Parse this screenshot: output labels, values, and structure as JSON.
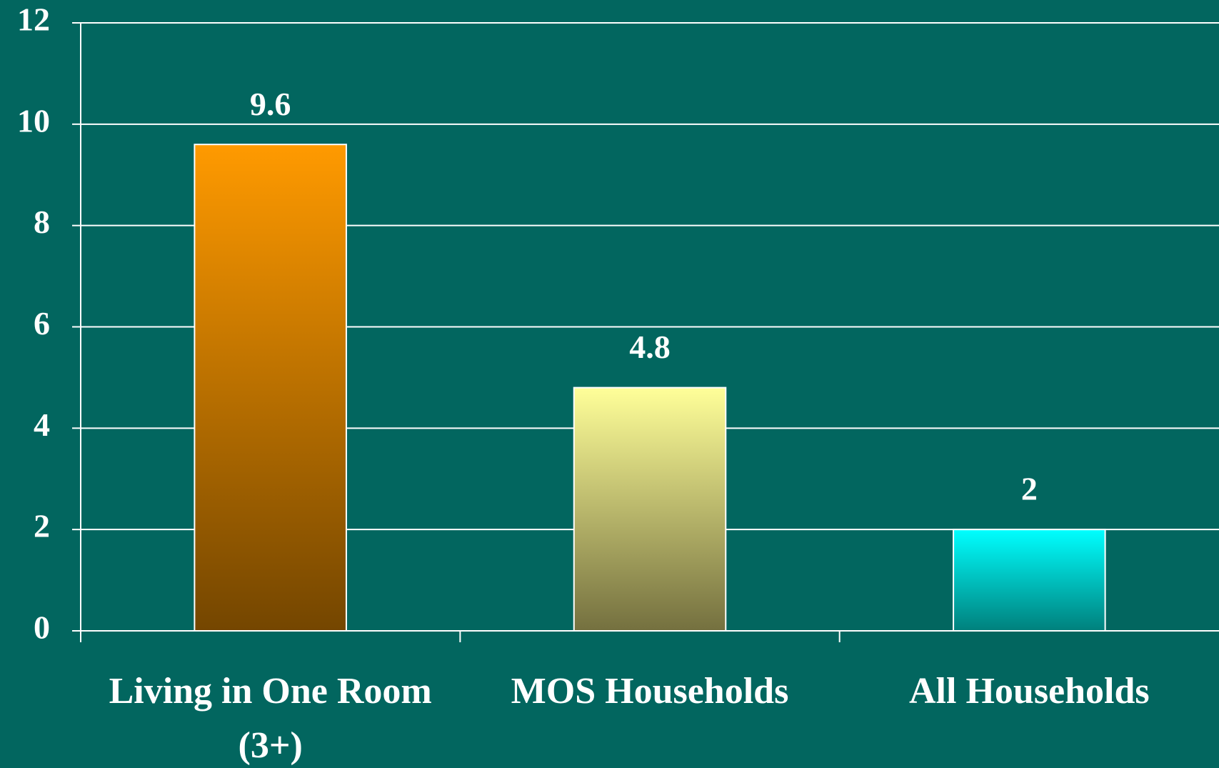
{
  "chart_data": {
    "type": "bar",
    "categories": [
      "Living in One Room (3+)",
      "MOS Households",
      "All Households"
    ],
    "values": [
      9.6,
      4.8,
      2
    ],
    "colors": [
      [
        "#ff9a00",
        "#744600"
      ],
      [
        "#ffff99",
        "#74703f"
      ],
      [
        "#00ffff",
        "#00807c"
      ]
    ],
    "ylim": [
      0,
      12
    ],
    "yticks": [
      0,
      2,
      4,
      6,
      8,
      10,
      12
    ],
    "grid": true
  }
}
